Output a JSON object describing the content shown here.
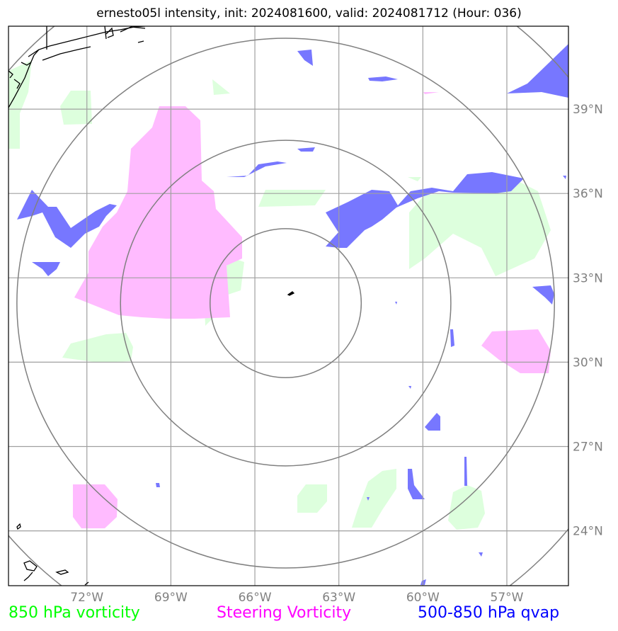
{
  "title": "ernesto05l intensity, init: 2024081600, valid: 2024081712 (Hour: 036)",
  "map": {
    "lon_range": [
      -74.8,
      -54.8
    ],
    "lat_range": [
      22.05,
      41.95
    ],
    "lon_ticks": [
      {
        "value": -72,
        "label": "72°W"
      },
      {
        "value": -69,
        "label": "69°W"
      },
      {
        "value": -66,
        "label": "66°W"
      },
      {
        "value": -63,
        "label": "63°W"
      },
      {
        "value": -60,
        "label": "60°W"
      },
      {
        "value": -57,
        "label": "57°W"
      }
    ],
    "lat_ticks": [
      {
        "value": 39,
        "label": "39°N"
      },
      {
        "value": 36,
        "label": "36°N"
      },
      {
        "value": 33,
        "label": "33°N"
      },
      {
        "value": 30,
        "label": "30°N"
      },
      {
        "value": 27,
        "label": "27°N"
      },
      {
        "value": 24,
        "label": "24°N"
      }
    ],
    "storm_center": {
      "lon": -64.9,
      "lat": 32.1
    },
    "range_rings_deg": [
      2.7,
      5.9,
      9.6,
      13.0
    ]
  },
  "legend": {
    "item1": {
      "label": "850 hPa vorticity",
      "color": "#00ff00"
    },
    "item2": {
      "label": "Steering Vorticity",
      "color": "#ff00ff"
    },
    "item3": {
      "label": "500-850 hPa qvap",
      "color": "#0000ff"
    }
  },
  "colors": {
    "vort850_fill": "#ddffdd",
    "steering_fill": "#ffbbff",
    "qvap_fill": "#7777ff"
  }
}
